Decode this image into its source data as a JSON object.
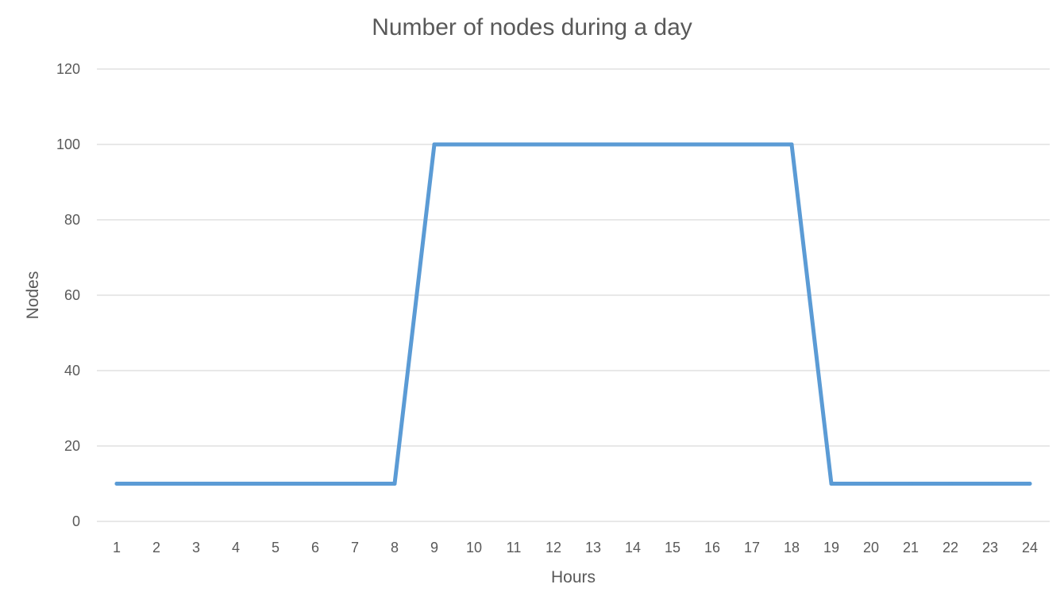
{
  "chart_data": {
    "type": "line",
    "title": "Number of nodes during a day",
    "xlabel": "Hours",
    "ylabel": "Nodes",
    "categories": [
      "1",
      "2",
      "3",
      "4",
      "5",
      "6",
      "7",
      "8",
      "9",
      "10",
      "11",
      "12",
      "13",
      "14",
      "15",
      "16",
      "17",
      "18",
      "19",
      "20",
      "21",
      "22",
      "23",
      "24"
    ],
    "series": [
      {
        "values": [
          10,
          10,
          10,
          10,
          10,
          10,
          10,
          10,
          100,
          100,
          100,
          100,
          100,
          100,
          100,
          100,
          100,
          100,
          10,
          10,
          10,
          10,
          10,
          10
        ],
        "color": "#5b9bd5"
      }
    ],
    "ylim": [
      0,
      120
    ],
    "yticks": [
      0,
      20,
      40,
      60,
      80,
      100,
      120
    ],
    "grid": true,
    "legend": "none"
  }
}
